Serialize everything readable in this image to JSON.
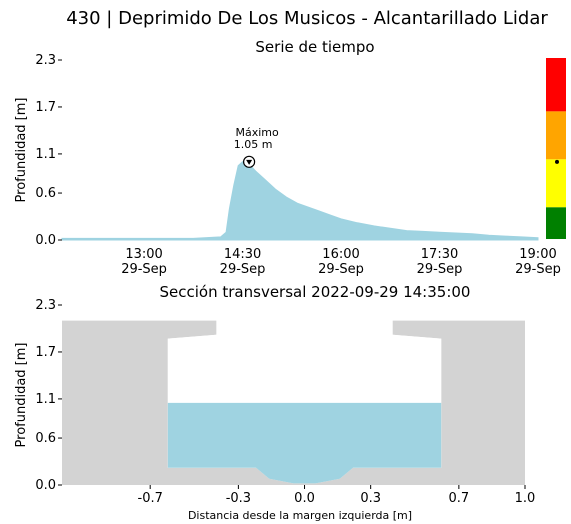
{
  "title": "430 | Deprimido De Los Musicos - Alcantarillado Lidar",
  "chart_data": [
    {
      "type": "area",
      "title": "Serie de tiempo",
      "ylabel": "Profundidad [m]",
      "xlabel": "",
      "ylim": [
        0,
        2.3
      ],
      "yticks": [
        "0.0",
        "0.6",
        "1.1",
        "1.7",
        "2.3"
      ],
      "xlim": [
        "2022-09-29 11:45",
        "2022-09-29 19:00"
      ],
      "xticks": [
        {
          "line1": "13:00",
          "line2": "29-Sep"
        },
        {
          "line1": "14:30",
          "line2": "29-Sep"
        },
        {
          "line1": "16:00",
          "line2": "29-Sep"
        },
        {
          "line1": "17:30",
          "line2": "29-Sep"
        },
        {
          "line1": "19:00",
          "line2": "29-Sep"
        }
      ],
      "series_color": "#9fd3e1",
      "x": [
        "11:45",
        "12:15",
        "12:45",
        "13:15",
        "13:45",
        "14:10",
        "14:15",
        "14:18",
        "14:22",
        "14:26",
        "14:30",
        "14:36",
        "14:42",
        "14:50",
        "15:00",
        "15:10",
        "15:20",
        "15:30",
        "15:40",
        "15:50",
        "16:00",
        "16:15",
        "16:30",
        "16:45",
        "17:00",
        "17:15",
        "17:30",
        "17:45",
        "18:00",
        "18:15",
        "18:30",
        "18:45",
        "19:00"
      ],
      "values": [
        0.02,
        0.02,
        0.02,
        0.02,
        0.02,
        0.04,
        0.1,
        0.4,
        0.7,
        0.95,
        1.0,
        0.97,
        0.88,
        0.78,
        0.65,
        0.55,
        0.47,
        0.42,
        0.37,
        0.32,
        0.27,
        0.22,
        0.18,
        0.15,
        0.12,
        0.11,
        0.1,
        0.09,
        0.08,
        0.06,
        0.05,
        0.04,
        0.03
      ],
      "annotation": {
        "label": "Máximo",
        "value_label": "1.05 m",
        "x": "14:36",
        "y": 1.05
      },
      "gauge": {
        "colors": [
          "#ff0000",
          "#ffa500",
          "#ffff00",
          "#008000"
        ],
        "marker_value": 1.05
      }
    },
    {
      "type": "area",
      "title": "Sección transversal 2022-09-29 14:35:00",
      "ylabel": "Profundidad [m]",
      "xlabel": "Distancia desde la margen izquierda [m]",
      "ylim": [
        0,
        2.3
      ],
      "yticks": [
        "0.0",
        "0.6",
        "1.1",
        "1.7",
        "2.3"
      ],
      "xlim": [
        -1.1,
        1.0
      ],
      "xticks": [
        "-0.7",
        "-0.3",
        "0.0",
        "0.3",
        "0.7",
        "1.0"
      ],
      "water_level": 1.05,
      "section_color": "#d3d3d3",
      "water_color": "#9fd3e1"
    }
  ]
}
